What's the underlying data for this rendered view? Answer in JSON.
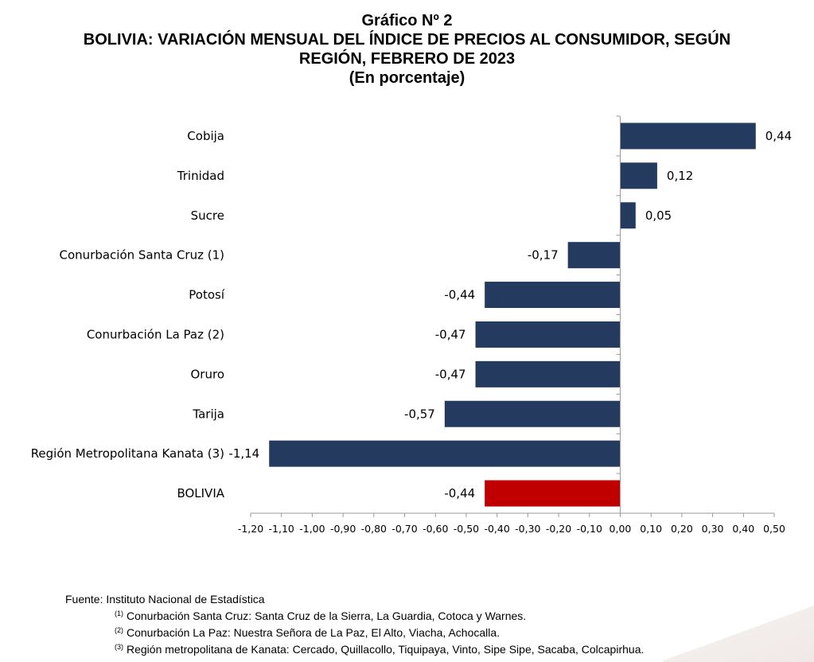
{
  "title": {
    "line1": "Gráfico Nº 2",
    "line2": "BOLIVIA: VARIACIÓN MENSUAL DEL ÍNDICE DE PRECIOS AL CONSUMIDOR, SEGÚN",
    "line3": "REGIÓN, FEBRERO DE 2023",
    "line4": "(En porcentaje)"
  },
  "chart_data": {
    "type": "bar",
    "orientation": "horizontal",
    "categories": [
      "Cobija",
      "Trinidad",
      "Sucre",
      "Conurbación Santa Cruz (1)",
      "Potosí",
      "Conurbación La Paz (2)",
      "Oruro",
      "Tarija",
      "Región Metropolitana Kanata (3)",
      "BOLIVIA"
    ],
    "values": [
      0.44,
      0.12,
      0.05,
      -0.17,
      -0.44,
      -0.47,
      -0.47,
      -0.57,
      -1.14,
      -0.44
    ],
    "value_labels": [
      "0,44",
      "0,12",
      "0,05",
      "-0,17",
      "-0,44",
      "-0,47",
      "-0,47",
      "-0,57",
      "-1,14",
      "-0,44"
    ],
    "colors": [
      "#243a5e",
      "#243a5e",
      "#243a5e",
      "#243a5e",
      "#243a5e",
      "#243a5e",
      "#243a5e",
      "#243a5e",
      "#243a5e",
      "#c00000"
    ],
    "xlim": [
      -1.2,
      0.5
    ],
    "xticks": [
      "-1,20",
      "-1,10",
      "-1,00",
      "-0,90",
      "-0,80",
      "-0,70",
      "-0,60",
      "-0,50",
      "-0,40",
      "-0,30",
      "-0,20",
      "-0,10",
      "0,00",
      "0,10",
      "0,20",
      "0,30",
      "0,40",
      "0,50"
    ],
    "xtick_values": [
      -1.2,
      -1.1,
      -1.0,
      -0.9,
      -0.8,
      -0.7,
      -0.6,
      -0.5,
      -0.4,
      -0.3,
      -0.2,
      -0.1,
      0.0,
      0.1,
      0.2,
      0.3,
      0.4,
      0.5
    ],
    "grid": false
  },
  "notes": {
    "source": "Fuente: Instituto Nacional de Estadística",
    "fn1_mark": "(1)",
    "fn1": "Conurbación Santa Cruz: Santa Cruz de la Sierra, La Guardia, Cotoca y Warnes.",
    "fn2_mark": "(2)",
    "fn2": "Conurbación La Paz: Nuestra Señora de La Paz, El Alto, Viacha, Achocalla.",
    "fn3_mark": "(3)",
    "fn3": "Región metropolitana de Kanata: Cercado, Quillacollo, Tiquipaya, Vinto, Sipe Sipe, Sacaba, Colcapirhua."
  }
}
